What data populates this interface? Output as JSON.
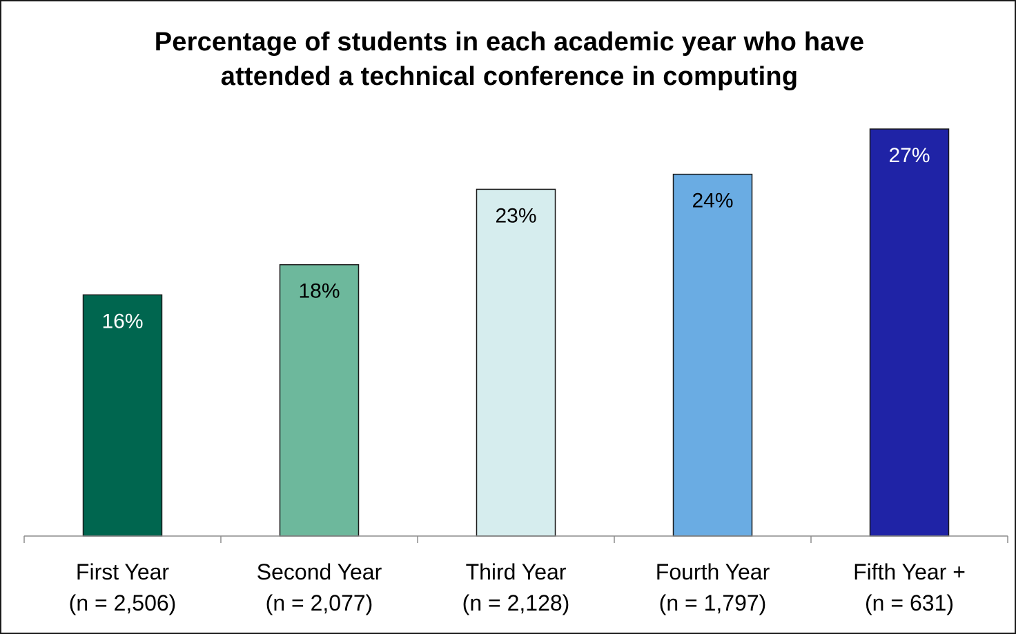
{
  "chart_data": {
    "type": "bar",
    "title": [
      "Percentage of students in each academic year who have",
      "attended a technical conference in computing"
    ],
    "categories": [
      {
        "name": "First Year",
        "sample": "(n = 2,506)"
      },
      {
        "name": "Second Year",
        "sample": "(n = 2,077)"
      },
      {
        "name": "Third Year",
        "sample": "(n = 2,128)"
      },
      {
        "name": "Fourth Year",
        "sample": "(n = 1,797)"
      },
      {
        "name": "Fifth Year +",
        "sample": "(n = 631)"
      }
    ],
    "values": [
      16,
      18,
      23,
      24,
      27
    ],
    "data_labels": [
      "16%",
      "18%",
      "23%",
      "24%",
      "27%"
    ],
    "bar_colors": [
      "#00664f",
      "#6db89c",
      "#d6edee",
      "#6aace3",
      "#1f23a6"
    ],
    "label_colors": [
      "#ffffff",
      "#000000",
      "#000000",
      "#000000",
      "#ffffff"
    ],
    "ylim": [
      0,
      32
    ],
    "grid": false,
    "legend": "none"
  }
}
